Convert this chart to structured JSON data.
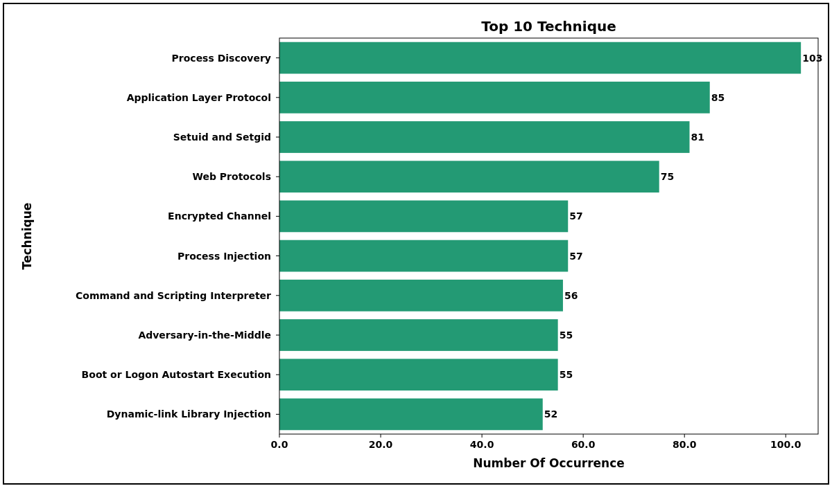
{
  "chart_data": {
    "type": "bar",
    "orientation": "horizontal",
    "title": "Top 10 Technique",
    "xlabel": "Number Of Occurrence",
    "ylabel": "Technique",
    "categories": [
      "Process Discovery",
      "Application Layer Protocol",
      "Setuid and Setgid",
      "Web Protocols",
      "Encrypted Channel",
      "Process Injection",
      "Command and Scripting Interpreter",
      "Adversary-in-the-Middle",
      "Boot or Logon Autostart Execution",
      "Dynamic-link Library Injection"
    ],
    "values": [
      103,
      85,
      81,
      75,
      57,
      57,
      56,
      55,
      55,
      52
    ],
    "color": "#239a74",
    "xlim": [
      0,
      106.4
    ],
    "xticks": [
      {
        "value": 0,
        "label": "0.0"
      },
      {
        "value": 20,
        "label": "20.0"
      },
      {
        "value": 40,
        "label": "40.0"
      },
      {
        "value": 60,
        "label": "60.0"
      },
      {
        "value": 80,
        "label": "80.0"
      },
      {
        "value": 100,
        "label": "100.0"
      }
    ],
    "data_labels": true,
    "grid": false
  }
}
